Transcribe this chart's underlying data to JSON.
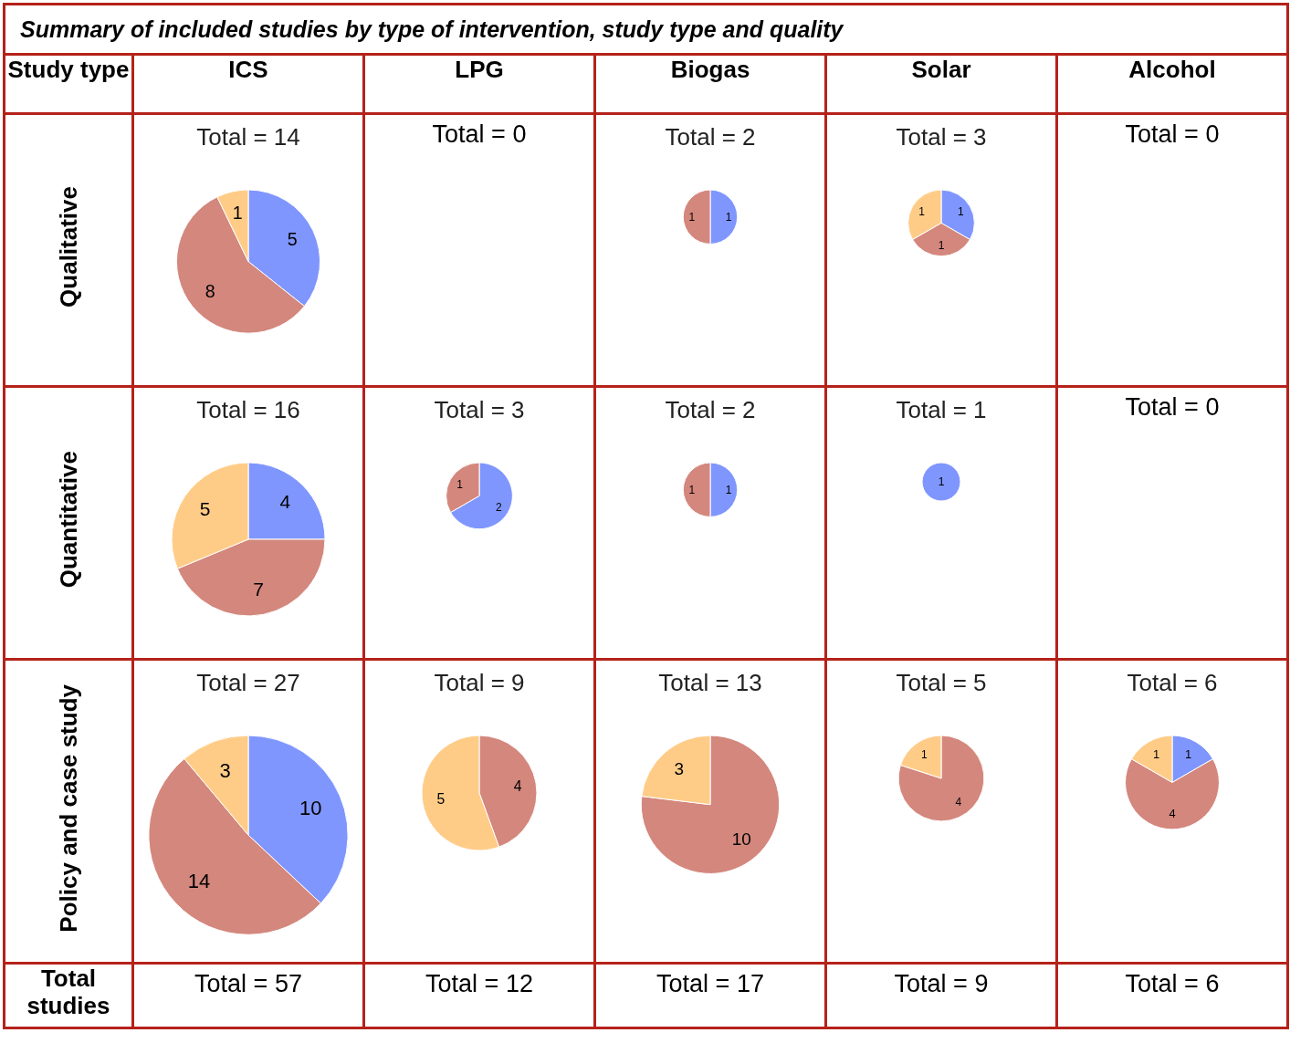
{
  "chart_data": [
    {
      "type": "other",
      "title": "Summary of included studies by type of intervention, study type and quality",
      "annotations": [
        "Study type",
        "ICS",
        "LPG",
        "Biogas",
        "Solar",
        "Alcohol",
        "Qualitative",
        "Quantitative",
        "Policy and case study",
        "Total studies",
        "Total = 57",
        "Total = 12",
        "Total = 17",
        "Total = 9",
        "Total = 6"
      ]
    },
    {
      "type": "pie",
      "title": "Total = 14",
      "categories": [
        null,
        null,
        null
      ],
      "values": [
        5,
        8,
        1
      ],
      "colors": [
        "#7f96ff",
        "#d4877d",
        "#ffcc88"
      ],
      "data_labels": true
    },
    {
      "type": "other",
      "title": "Total = 0"
    },
    {
      "type": "pie",
      "title": "Total = 2",
      "categories": [
        null,
        null
      ],
      "values": [
        1,
        1
      ],
      "colors": [
        "#7f96ff",
        "#d4877d"
      ],
      "data_labels": true
    },
    {
      "type": "pie",
      "title": "Total = 3",
      "categories": [
        null,
        null,
        null
      ],
      "values": [
        1,
        1,
        1
      ],
      "colors": [
        "#7f96ff",
        "#d4877d",
        "#ffcc88"
      ],
      "data_labels": true
    },
    {
      "type": "other",
      "title": "Total = 0"
    },
    {
      "type": "pie",
      "title": "Total = 16",
      "categories": [
        null,
        null,
        null
      ],
      "values": [
        4,
        7,
        5
      ],
      "colors": [
        "#7f96ff",
        "#d4877d",
        "#ffcc88"
      ],
      "data_labels": true
    },
    {
      "type": "pie",
      "title": "Total = 3",
      "categories": [
        null,
        null
      ],
      "values": [
        2,
        1
      ],
      "colors": [
        "#7f96ff",
        "#d4877d"
      ],
      "data_labels": true
    },
    {
      "type": "pie",
      "title": "Total = 2",
      "categories": [
        null,
        null
      ],
      "values": [
        1,
        1
      ],
      "colors": [
        "#7f96ff",
        "#d4877d"
      ],
      "data_labels": true
    },
    {
      "type": "pie",
      "title": "Total = 1",
      "categories": [
        null
      ],
      "values": [
        1
      ],
      "colors": [
        "#7f96ff"
      ],
      "data_labels": true
    },
    {
      "type": "other",
      "title": "Total = 0"
    },
    {
      "type": "pie",
      "title": "Total = 27",
      "categories": [
        null,
        null,
        null
      ],
      "values": [
        10,
        14,
        3
      ],
      "colors": [
        "#7f96ff",
        "#d4877d",
        "#ffcc88"
      ],
      "data_labels": true
    },
    {
      "type": "pie",
      "title": "Total = 9",
      "categories": [
        null,
        null
      ],
      "values": [
        4,
        5
      ],
      "colors": [
        "#d4877d",
        "#ffcc88"
      ],
      "data_labels": true
    },
    {
      "type": "pie",
      "title": "Total = 13",
      "categories": [
        null,
        null
      ],
      "values": [
        10,
        3
      ],
      "colors": [
        "#d4877d",
        "#ffcc88"
      ],
      "data_labels": true
    },
    {
      "type": "pie",
      "title": "Total = 5",
      "categories": [
        null,
        null
      ],
      "values": [
        4,
        1
      ],
      "colors": [
        "#d4877d",
        "#ffcc88"
      ],
      "data_labels": true
    },
    {
      "type": "pie",
      "title": "Total = 6",
      "categories": [
        null,
        null,
        null
      ],
      "values": [
        1,
        4,
        1
      ],
      "colors": [
        "#7f96ff",
        "#d4877d",
        "#ffcc88"
      ],
      "data_labels": true
    }
  ]
}
